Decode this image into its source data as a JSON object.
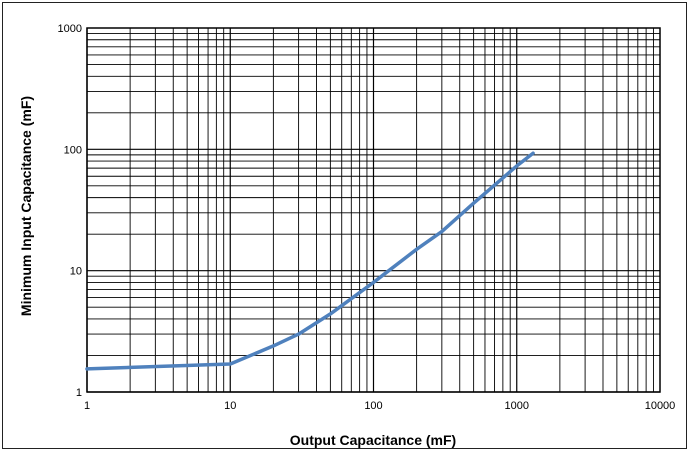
{
  "chart_data": {
    "type": "line",
    "xlabel": "Output Capacitance (mF)",
    "ylabel": "Minimum Input Capacitance (mF)",
    "x_scale": "log",
    "y_scale": "log",
    "xlim": [
      1,
      10000
    ],
    "ylim": [
      1,
      1000
    ],
    "x_ticks": [
      "1",
      "10",
      "100",
      "1000",
      "10000"
    ],
    "y_ticks": [
      "1",
      "10",
      "100",
      "1000"
    ],
    "grid": true,
    "line_color": "#4f81bd",
    "series": [
      {
        "x": [
          1,
          10,
          20,
          30,
          50,
          100,
          200,
          300,
          500,
          1000,
          1300
        ],
        "y": [
          1.55,
          1.7,
          2.4,
          3.0,
          4.4,
          8.0,
          15,
          21,
          36,
          73,
          93
        ]
      }
    ]
  }
}
